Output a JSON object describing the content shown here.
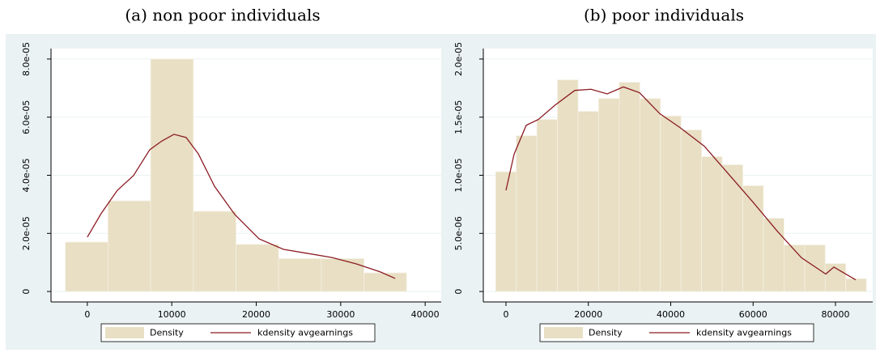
{
  "chart_data": [
    {
      "type": "histogram",
      "title": "(a) non poor individuals",
      "bins": [
        -2600,
        2450,
        7500,
        12550,
        17600,
        22650,
        27700,
        32750,
        37800
      ],
      "series": [
        {
          "name": "Density",
          "color": "#e8dfc4",
          "values": [
            1.7e-05,
            3.12e-05,
            8e-05,
            2.76e-05,
            1.62e-05,
            1.13e-05,
            1.13e-05,
            6.4e-06
          ]
        },
        {
          "name": "kdensity avgearnings",
          "color": "#8b1c24",
          "x": [
            0,
            1630,
            3550,
            5470,
            7390,
            8830,
            10260,
            11700,
            13140,
            15060,
            17460,
            20340,
            23220,
            26090,
            28970,
            31850,
            34720,
            36450
          ],
          "values": [
            1.87e-05,
            2.68e-05,
            3.48e-05,
            3.99e-05,
            4.88e-05,
            5.18e-05,
            5.41e-05,
            5.3e-05,
            4.74e-05,
            3.62e-05,
            2.65e-05,
            1.81e-05,
            1.45e-05,
            1.31e-05,
            1.17e-05,
            9.5e-06,
            6.7e-06,
            4.5e-06
          ]
        }
      ],
      "xlim": [
        -4300,
        41900
      ],
      "xticks": [
        0,
        10000,
        20000,
        30000,
        40000
      ],
      "ylim": [
        -3.6e-06,
        8.36e-05
      ],
      "yticks": [
        0,
        {
          "value": 2e-05,
          "label": "2.0e-05"
        },
        {
          "value": 4e-05,
          "label": "4.0e-05"
        },
        {
          "value": 6e-05,
          "label": "6.0e-05"
        },
        {
          "value": 8e-05,
          "label": "8.0e-05"
        }
      ],
      "grid": true
    },
    {
      "type": "histogram",
      "title": "(b) poor individuals",
      "bins": [
        -2500,
        2500,
        7500,
        12500,
        17500,
        22500,
        27500,
        32500,
        37500,
        42500,
        47500,
        52500,
        57500,
        62500,
        67500,
        72500,
        77500,
        82500,
        87500
      ],
      "series": [
        {
          "name": "Density",
          "color": "#e8dfc4",
          "values": [
            1.03e-05,
            1.34e-05,
            1.48e-05,
            1.82e-05,
            1.55e-05,
            1.66e-05,
            1.8e-05,
            1.66e-05,
            1.51e-05,
            1.39e-05,
            1.16e-05,
            1.09e-05,
            9.1e-06,
            6.3e-06,
            4e-06,
            4e-06,
            2.4e-06,
            1.1e-06
          ]
        },
        {
          "name": "kdensity avgearnings",
          "color": "#8b1c24",
          "x": [
            0,
            1966,
            4914,
            7862,
            11794,
            16708,
            20639,
            24570,
            28501,
            32432,
            37346,
            42260,
            48157,
            54054,
            59951,
            65848,
            71744,
            77641,
            79607,
            84914
          ],
          "values": [
            8.7e-06,
            1.18e-05,
            1.43e-05,
            1.48e-05,
            1.6e-05,
            1.73e-05,
            1.74e-05,
            1.7e-05,
            1.76e-05,
            1.71e-05,
            1.53e-05,
            1.41e-05,
            1.25e-05,
            1.01e-05,
            7.7e-06,
            5.2e-06,
            2.9e-06,
            1.5e-06,
            2.1e-06,
            1e-06
          ]
        }
      ],
      "xlim": [
        -5500,
        89040
      ],
      "xticks": [
        0,
        20000,
        40000,
        60000,
        80000
      ],
      "ylim": [
        -9e-07,
        2.09e-05
      ],
      "yticks": [
        0,
        {
          "value": 5e-06,
          "label": "5.0e-06"
        },
        {
          "value": 1e-05,
          "label": "1.0e-05"
        },
        {
          "value": 1.5e-05,
          "label": "1.5e-05"
        },
        {
          "value": 2e-05,
          "label": "2.0e-05"
        }
      ],
      "grid": true
    }
  ]
}
